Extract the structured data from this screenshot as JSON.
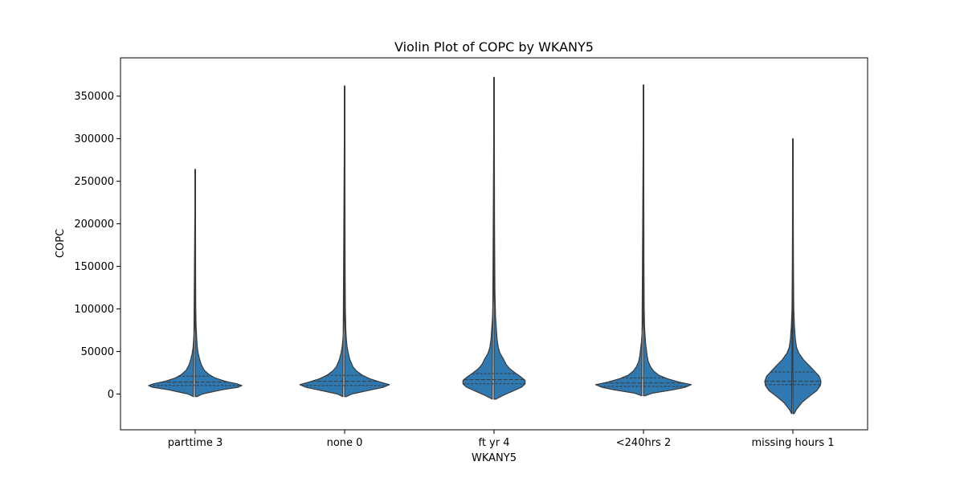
{
  "chart_data": {
    "type": "violin",
    "title": "Violin Plot of COPC by WKANY5",
    "xlabel": "WKANY5",
    "ylabel": "COPC",
    "categories": [
      "parttime 3",
      "none 0",
      "ft yr 4",
      "<240hrs 2",
      "missing hours 1"
    ],
    "ylim": [
      -42000,
      395000
    ],
    "yticks": [
      0,
      50000,
      100000,
      150000,
      200000,
      250000,
      300000,
      350000
    ],
    "ytick_labels": [
      "0",
      "50000",
      "100000",
      "150000",
      "200000",
      "250000",
      "300000",
      "350000"
    ],
    "grid": false,
    "inner": "quartile",
    "color": "#2f78b0",
    "edge_color": "#3a3a3a",
    "violins": [
      {
        "category": "parttime 3",
        "min": -3000,
        "max": 264000,
        "q1": 10000,
        "median": 14000,
        "q3": 21000,
        "profile": [
          [
            -3000,
            0.03
          ],
          [
            0,
            0.12
          ],
          [
            5000,
            0.45
          ],
          [
            8000,
            0.72
          ],
          [
            10000,
            0.78
          ],
          [
            12000,
            0.7
          ],
          [
            15000,
            0.5
          ],
          [
            19000,
            0.33
          ],
          [
            23000,
            0.23
          ],
          [
            28000,
            0.15
          ],
          [
            35000,
            0.1
          ],
          [
            42000,
            0.07
          ],
          [
            48000,
            0.05
          ],
          [
            55000,
            0.035
          ],
          [
            65000,
            0.025
          ],
          [
            80000,
            0.015
          ],
          [
            100000,
            0.01
          ],
          [
            150000,
            0.007
          ],
          [
            200000,
            0.006
          ],
          [
            264000,
            0.005
          ]
        ]
      },
      {
        "category": "none 0",
        "min": -3000,
        "max": 362000,
        "q1": 10000,
        "median": 15000,
        "q3": 22000,
        "profile": [
          [
            -3000,
            0.03
          ],
          [
            0,
            0.12
          ],
          [
            5000,
            0.45
          ],
          [
            8000,
            0.65
          ],
          [
            11000,
            0.75
          ],
          [
            14000,
            0.6
          ],
          [
            18000,
            0.42
          ],
          [
            22000,
            0.3
          ],
          [
            27000,
            0.2
          ],
          [
            32000,
            0.14
          ],
          [
            40000,
            0.09
          ],
          [
            48000,
            0.06
          ],
          [
            56000,
            0.04
          ],
          [
            65000,
            0.028
          ],
          [
            75000,
            0.02
          ],
          [
            100000,
            0.012
          ],
          [
            150000,
            0.008
          ],
          [
            250000,
            0.006
          ],
          [
            362000,
            0.005
          ]
        ]
      },
      {
        "category": "ft yr 4",
        "min": -6000,
        "max": 372000,
        "q1": 12000,
        "median": 17000,
        "q3": 24000,
        "profile": [
          [
            -6000,
            0.03
          ],
          [
            -2000,
            0.14
          ],
          [
            3000,
            0.3
          ],
          [
            8000,
            0.46
          ],
          [
            12000,
            0.52
          ],
          [
            16000,
            0.52
          ],
          [
            20000,
            0.45
          ],
          [
            25000,
            0.35
          ],
          [
            30000,
            0.26
          ],
          [
            35000,
            0.2
          ],
          [
            42000,
            0.15
          ],
          [
            48000,
            0.1
          ],
          [
            55000,
            0.07
          ],
          [
            65000,
            0.05
          ],
          [
            75000,
            0.04
          ],
          [
            90000,
            0.025
          ],
          [
            120000,
            0.015
          ],
          [
            200000,
            0.008
          ],
          [
            300000,
            0.006
          ],
          [
            372000,
            0.005
          ]
        ]
      },
      {
        "category": "<240hrs 2",
        "min": -2000,
        "max": 363000,
        "q1": 9000,
        "median": 13000,
        "q3": 19000,
        "profile": [
          [
            -2000,
            0.03
          ],
          [
            1000,
            0.15
          ],
          [
            5000,
            0.5
          ],
          [
            8000,
            0.7
          ],
          [
            11000,
            0.8
          ],
          [
            14000,
            0.6
          ],
          [
            18000,
            0.4
          ],
          [
            22000,
            0.26
          ],
          [
            27000,
            0.17
          ],
          [
            32000,
            0.12
          ],
          [
            38000,
            0.08
          ],
          [
            45000,
            0.06
          ],
          [
            52000,
            0.05
          ],
          [
            60000,
            0.035
          ],
          [
            70000,
            0.025
          ],
          [
            80000,
            0.017
          ],
          [
            100000,
            0.012
          ],
          [
            150000,
            0.008
          ],
          [
            250000,
            0.006
          ],
          [
            363000,
            0.005
          ]
        ]
      },
      {
        "category": "missing hours 1",
        "min": -23000,
        "max": 300000,
        "q1": 11000,
        "median": 15000,
        "q3": 26000,
        "profile": [
          [
            -23000,
            0.02
          ],
          [
            -18000,
            0.06
          ],
          [
            -10000,
            0.15
          ],
          [
            -3000,
            0.27
          ],
          [
            4000,
            0.4
          ],
          [
            10000,
            0.46
          ],
          [
            15000,
            0.47
          ],
          [
            21000,
            0.44
          ],
          [
            27000,
            0.36
          ],
          [
            33000,
            0.28
          ],
          [
            40000,
            0.18
          ],
          [
            48000,
            0.1
          ],
          [
            55000,
            0.06
          ],
          [
            65000,
            0.04
          ],
          [
            80000,
            0.025
          ],
          [
            100000,
            0.015
          ],
          [
            150000,
            0.009
          ],
          [
            200000,
            0.007
          ],
          [
            300000,
            0.005
          ]
        ]
      }
    ]
  }
}
